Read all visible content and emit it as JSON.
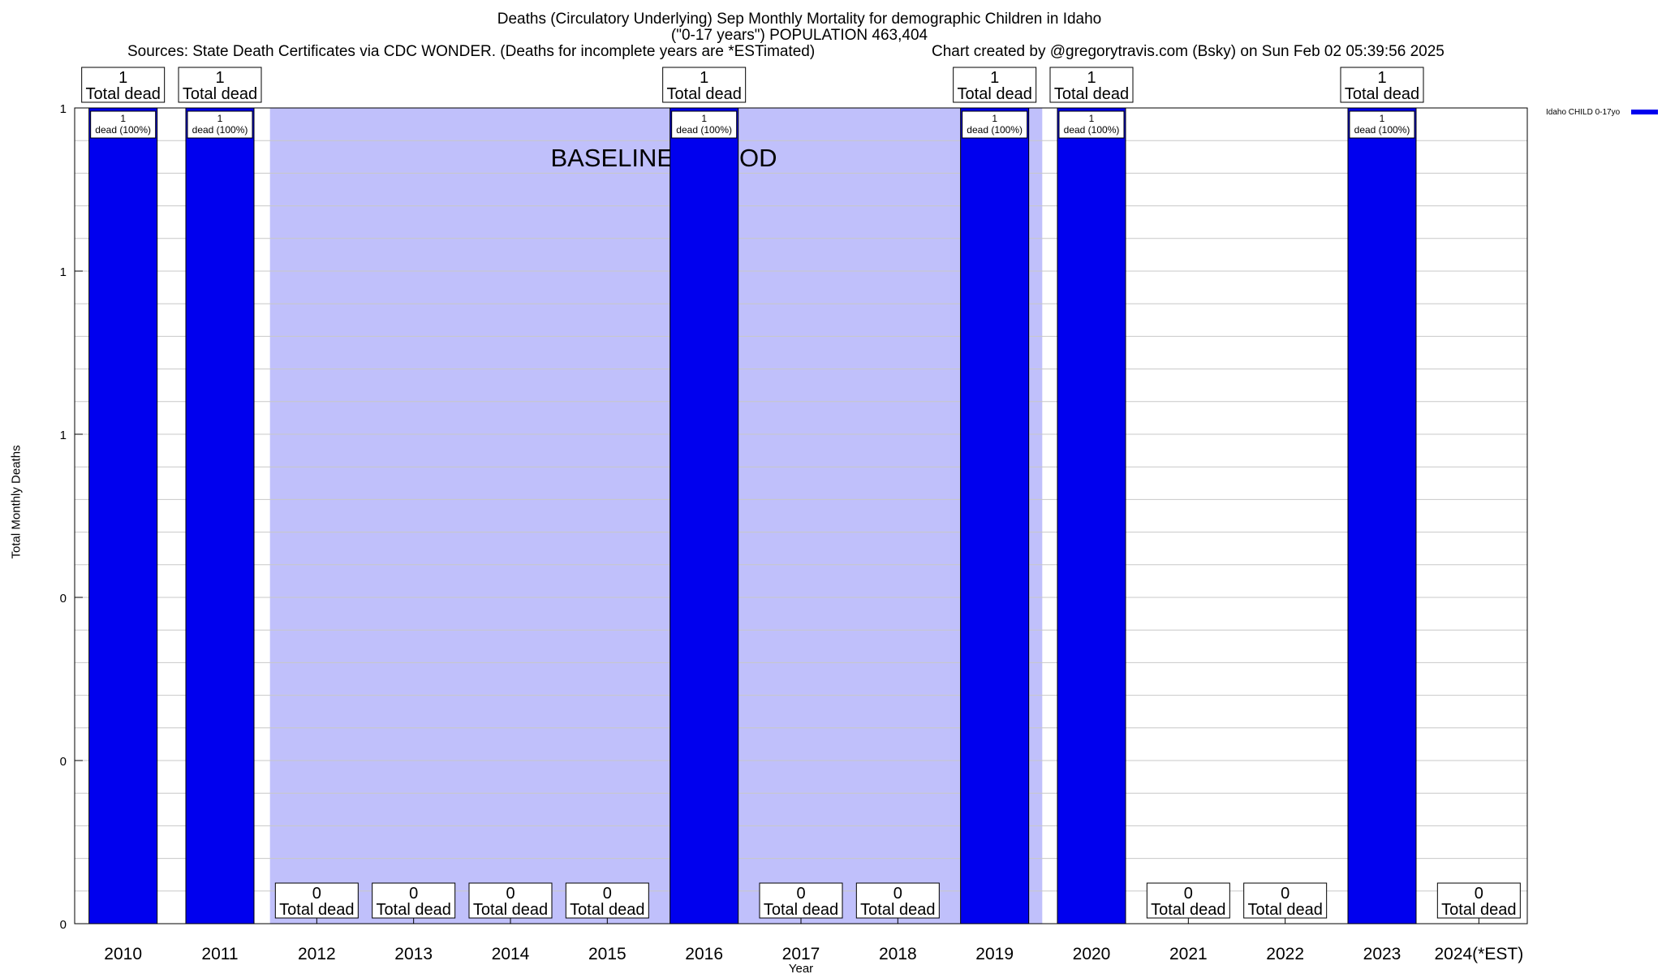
{
  "header": {
    "title_line1": "Deaths (Circulatory Underlying) Sep Monthly Mortality for demographic Children in Idaho",
    "title_line2": "(\"0-17 years\") POPULATION 463,404",
    "sources": "Sources: State Death Certificates via CDC WONDER. (Deaths for incomplete years are *ESTimated)",
    "credit": "Chart created by @gregorytravis.com (Bsky) on Sun Feb 02 05:39:56 2025"
  },
  "chart_data": {
    "type": "bar",
    "title": "Deaths (Circulatory Underlying) Sep Monthly Mortality for demographic Children in Idaho",
    "xlabel": "Year",
    "ylabel": "Total Monthly Deaths",
    "categories": [
      "2010",
      "2011",
      "2012",
      "2013",
      "2014",
      "2015",
      "2016",
      "2017",
      "2018",
      "2019",
      "2020",
      "2021",
      "2022",
      "2023",
      "2024(*EST)"
    ],
    "series": [
      {
        "name": "Idaho CHILD 0-17yo",
        "values": [
          1,
          1,
          0,
          0,
          0,
          0,
          1,
          0,
          0,
          1,
          1,
          0,
          0,
          1,
          0
        ]
      }
    ],
    "ylim": [
      0,
      1
    ],
    "ytick_labels": [
      "0",
      "0",
      "0",
      "1",
      "1",
      "1"
    ],
    "total_label_suffix": "Total dead",
    "inner_labels": [
      "dead (100%)",
      "dead (100%)",
      "",
      "",
      "",
      "",
      "dead (100%)",
      "",
      "",
      "dead (100%)",
      "dead (100%)",
      "",
      "",
      "dead (100%)",
      ""
    ],
    "baseline_period": {
      "label": "BASELINE PERIOD",
      "from": "2012",
      "to": "2019"
    },
    "legend_position": "top-right",
    "grid": true,
    "colors": {
      "bar": "#0000ee",
      "baseline": "#c0c0fb",
      "grid": "#c8c8c8"
    }
  }
}
